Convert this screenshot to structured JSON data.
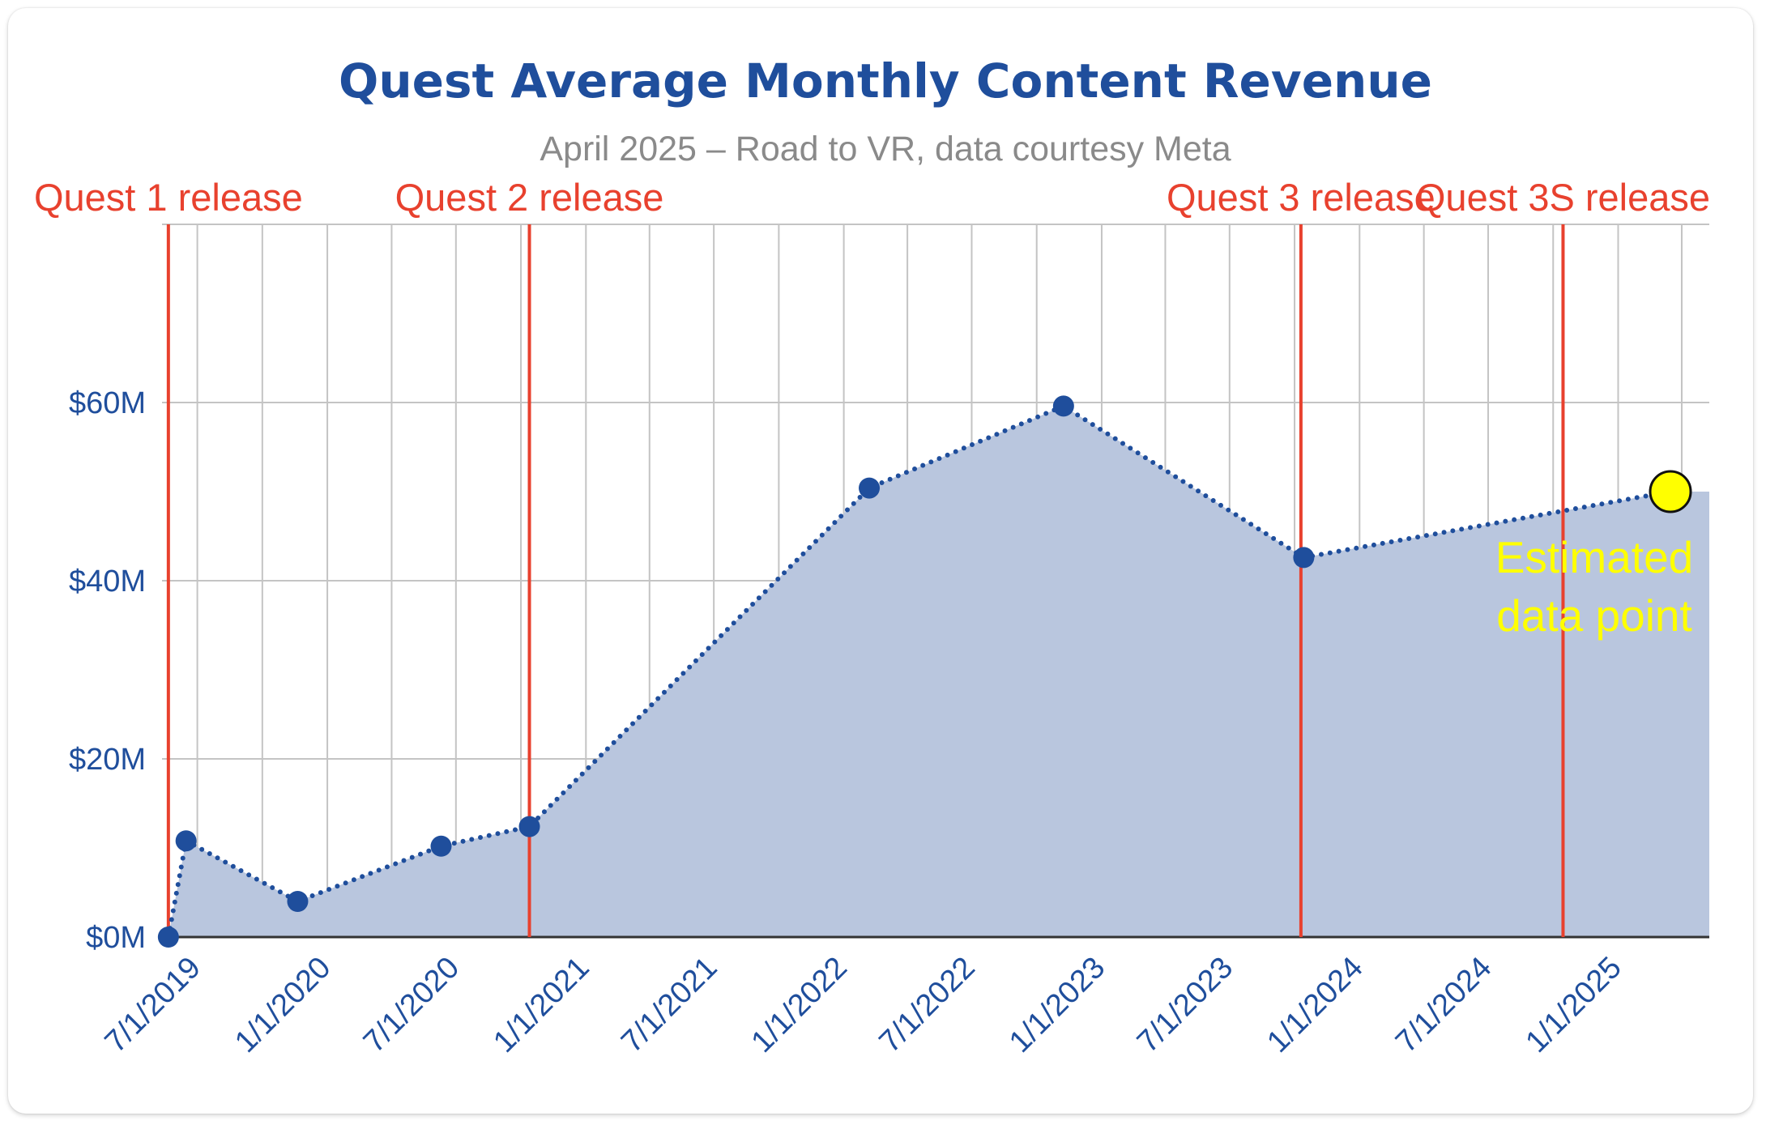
{
  "chart_data": {
    "type": "area",
    "title": "Quest Average Monthly Content Revenue",
    "subtitle": "April 2025 – Road to VR, data courtesy Meta",
    "xlabel": "",
    "ylabel": "",
    "x_tick_labels": [
      "7/1/2019",
      "1/1/2020",
      "7/1/2020",
      "1/1/2021",
      "7/1/2021",
      "1/1/2022",
      "7/1/2022",
      "1/1/2023",
      "7/1/2023",
      "1/1/2024",
      "7/1/2024",
      "1/1/2025"
    ],
    "y_tick_labels": [
      "$0M",
      "$20M",
      "$40M",
      "$60M"
    ],
    "y_ticks": [
      0,
      20,
      40,
      60
    ],
    "ylim": [
      0,
      80
    ],
    "grid": true,
    "series": [
      {
        "points": [
          {
            "x": "2019-05-21",
            "y": 0
          },
          {
            "x": "2019-06-15",
            "y": 10.8
          },
          {
            "x": "2019-11-20",
            "y": 4.0
          },
          {
            "x": "2020-06-10",
            "y": 10.2
          },
          {
            "x": "2020-10-13",
            "y": 12.4
          },
          {
            "x": "2022-02-06",
            "y": 50.4
          },
          {
            "x": "2022-11-08",
            "y": 59.6
          },
          {
            "x": "2023-10-14",
            "y": 42.6
          },
          {
            "x": "2025-03-16",
            "y": 50.0,
            "estimated": true
          }
        ]
      }
    ],
    "annotations": [
      {
        "label": "Quest 1 release",
        "x": "2019-05-21"
      },
      {
        "label": "Quest 2 release",
        "x": "2020-10-13"
      },
      {
        "label": "Quest 3 release",
        "x": "2023-10-10"
      },
      {
        "label": "Quest 3S release",
        "x": "2024-10-15"
      }
    ],
    "estimated_label": [
      "Estimated",
      "data point"
    ],
    "colors": {
      "title": "#1f4e9c",
      "subtitle": "#8a8a8a",
      "line": "#1f4e9c",
      "fill": "#b9c6de",
      "grid": "#c4c4c4",
      "annotation": "#e8412e",
      "estimated_point": "#ffff00",
      "estimated_label": "#ffff00"
    }
  }
}
